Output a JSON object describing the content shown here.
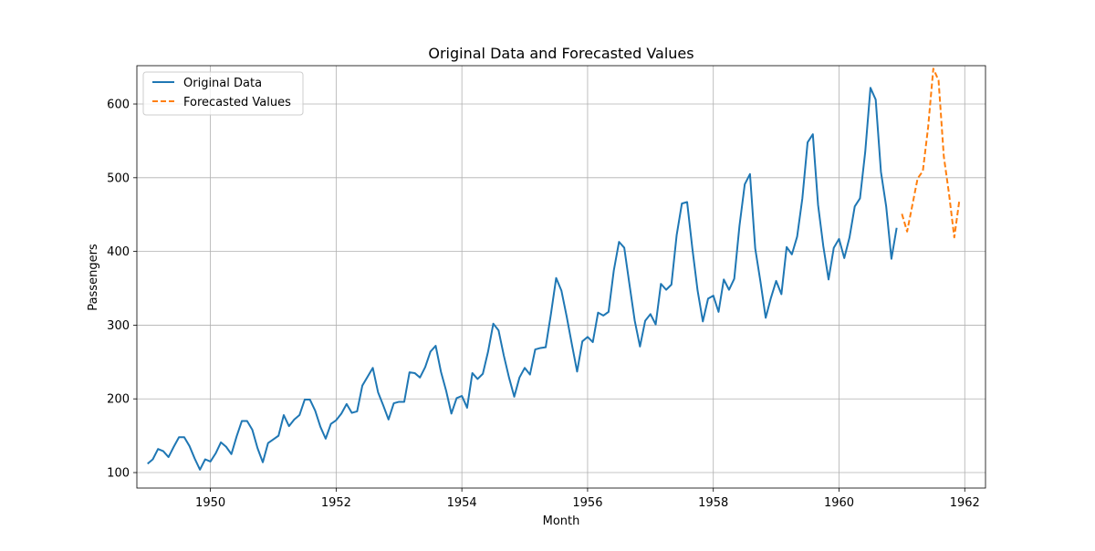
{
  "chart_data": {
    "type": "line",
    "title": "Original Data and Forecasted Values",
    "xlabel": "Month",
    "ylabel": "Passengers",
    "x_range": [
      1948.83,
      1962.33
    ],
    "xlim": [
      1948.83,
      1962.33
    ],
    "ylim": [
      79,
      652
    ],
    "x_ticks": [
      1950,
      1952,
      1954,
      1956,
      1958,
      1960,
      1962
    ],
    "y_ticks": [
      100,
      200,
      300,
      400,
      500,
      600
    ],
    "grid": true,
    "legend_placement": "top-left",
    "colors": {
      "original": "#1f77b4",
      "forecast": "#ff7f0e",
      "grid": "#b0b0b0"
    },
    "series": [
      {
        "name": "Original Data",
        "style": "solid",
        "color": "#1f77b4",
        "x_start": "1949-01",
        "x_step": "1 month",
        "values": [
          112,
          118,
          132,
          129,
          121,
          135,
          148,
          148,
          136,
          119,
          104,
          118,
          115,
          126,
          141,
          135,
          125,
          149,
          170,
          170,
          158,
          133,
          114,
          140,
          145,
          150,
          178,
          163,
          172,
          178,
          199,
          199,
          184,
          162,
          146,
          166,
          171,
          180,
          193,
          181,
          183,
          218,
          230,
          242,
          209,
          191,
          172,
          194,
          196,
          196,
          236,
          235,
          229,
          243,
          264,
          272,
          237,
          211,
          180,
          201,
          204,
          188,
          235,
          227,
          234,
          264,
          302,
          293,
          259,
          229,
          203,
          229,
          242,
          233,
          267,
          269,
          270,
          315,
          364,
          347,
          312,
          274,
          237,
          278,
          284,
          277,
          317,
          313,
          318,
          374,
          413,
          405,
          355,
          306,
          271,
          306,
          315,
          301,
          356,
          348,
          355,
          422,
          465,
          467,
          404,
          347,
          305,
          336,
          340,
          318,
          362,
          348,
          363,
          435,
          491,
          505,
          404,
          359,
          310,
          337,
          360,
          342,
          406,
          396,
          420,
          472,
          548,
          559,
          463,
          407,
          362,
          405,
          417,
          391,
          419,
          461,
          472,
          535,
          622,
          606,
          508,
          461,
          390,
          432
        ]
      },
      {
        "name": "Forecasted Values",
        "style": "dashed",
        "color": "#ff7f0e",
        "x_start": "1961-01",
        "x_step": "1 month",
        "values": [
          451,
          427,
          463,
          499,
          509,
          568,
          648,
          632,
          529,
          478,
          419,
          471
        ]
      }
    ]
  }
}
